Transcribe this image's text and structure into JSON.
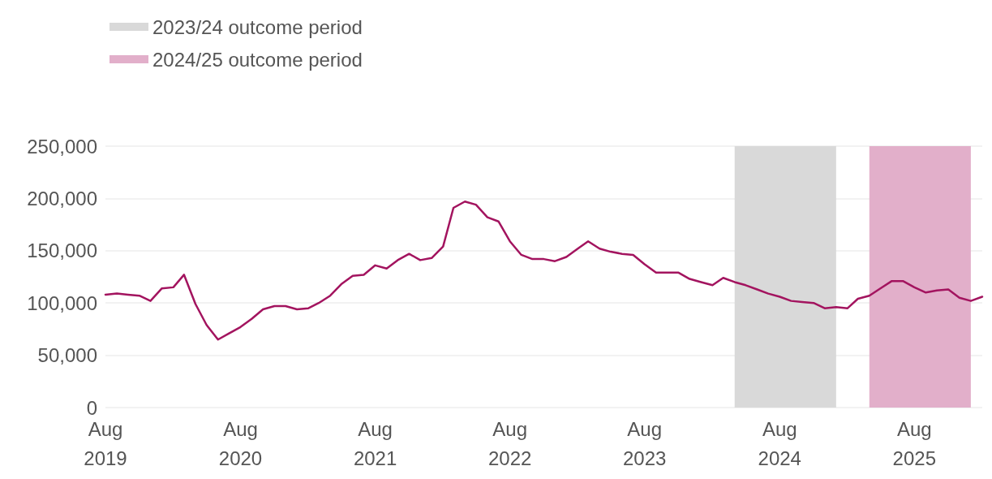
{
  "chart_data": {
    "type": "line",
    "x": [
      "2019-08",
      "2019-09",
      "2019-10",
      "2019-11",
      "2019-12",
      "2020-01",
      "2020-02",
      "2020-03",
      "2020-04",
      "2020-05",
      "2020-06",
      "2020-07",
      "2020-08",
      "2020-09",
      "2020-10",
      "2020-11",
      "2020-12",
      "2021-01",
      "2021-02",
      "2021-03",
      "2021-04",
      "2021-05",
      "2021-06",
      "2021-07",
      "2021-08",
      "2021-09",
      "2021-10",
      "2021-11",
      "2021-12",
      "2022-01",
      "2022-02",
      "2022-03",
      "2022-04",
      "2022-05",
      "2022-06",
      "2022-07",
      "2022-08",
      "2022-09",
      "2022-10",
      "2022-11",
      "2022-12",
      "2023-01",
      "2023-02",
      "2023-03",
      "2023-04",
      "2023-05",
      "2023-06",
      "2023-07",
      "2023-08",
      "2023-09",
      "2023-10",
      "2023-11",
      "2023-12",
      "2024-01",
      "2024-02",
      "2024-03",
      "2024-04",
      "2024-05",
      "2024-06",
      "2024-07",
      "2024-08",
      "2024-09",
      "2024-10",
      "2024-11",
      "2024-12",
      "2025-01",
      "2025-02",
      "2025-03",
      "2025-04",
      "2025-05",
      "2025-06",
      "2025-07",
      "2025-08",
      "2025-09",
      "2025-10",
      "2025-11",
      "2025-12",
      "2026-01",
      "2026-02"
    ],
    "series": [
      {
        "color": "#a3145f",
        "values": [
          108000,
          109000,
          108000,
          107000,
          102000,
          114000,
          115000,
          127000,
          99000,
          79000,
          65000,
          71000,
          77000,
          85000,
          94000,
          97000,
          97000,
          94000,
          95000,
          100000,
          107000,
          118000,
          126000,
          127000,
          136000,
          133000,
          141000,
          147000,
          141000,
          143000,
          154000,
          191000,
          197000,
          194000,
          182000,
          178000,
          159000,
          146000,
          142000,
          142000,
          140000,
          144000,
          152000,
          159000,
          152000,
          149000,
          147000,
          146000,
          137000,
          129000,
          129000,
          129000,
          123000,
          120000,
          117000,
          124000,
          120000,
          117000,
          113000,
          109000,
          106000,
          102000,
          101000,
          100000,
          95000,
          96000,
          95000,
          104000,
          107000,
          114000,
          121000,
          121000,
          115000,
          110000,
          112000,
          113000,
          105000,
          102000,
          106000
        ]
      }
    ],
    "xlim": [
      "2019-08",
      "2026-02"
    ],
    "xticks": [
      {
        "value": "2019-08",
        "label": "Aug 2019"
      },
      {
        "value": "2020-08",
        "label": "Aug 2020"
      },
      {
        "value": "2021-08",
        "label": "Aug 2021"
      },
      {
        "value": "2022-08",
        "label": "Aug 2022"
      },
      {
        "value": "2023-08",
        "label": "Aug 2023"
      },
      {
        "value": "2024-08",
        "label": "Aug 2024"
      },
      {
        "value": "2025-08",
        "label": "Aug 2025"
      }
    ],
    "ylim": [
      0,
      250000
    ],
    "yticks": [
      0,
      {
        "value": 50000,
        "label": "50,000"
      },
      {
        "value": 100000,
        "label": "100,000"
      },
      {
        "value": 150000,
        "label": "150,000"
      },
      {
        "value": 200000,
        "label": "200,000"
      },
      {
        "value": 250000,
        "label": "250,000"
      }
    ],
    "bands": [
      {
        "axis": "x",
        "from": "2024-04",
        "to": "2025-01",
        "label": "2023/24 outcome period",
        "color": "#d9d9d9"
      },
      {
        "axis": "x",
        "from": "2025-04",
        "to": "2026-01",
        "label": "2024/25 outcome period",
        "color": "#e2afca"
      }
    ],
    "grid": "y",
    "legend": "top left",
    "marker": "none",
    "line_style": "solid"
  }
}
